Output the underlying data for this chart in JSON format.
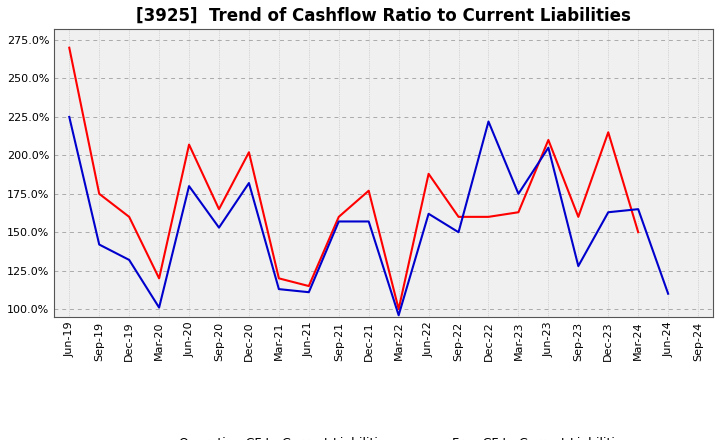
{
  "title": "[3925]  Trend of Cashflow Ratio to Current Liabilities",
  "x_labels": [
    "Jun-19",
    "Sep-19",
    "Dec-19",
    "Mar-20",
    "Jun-20",
    "Sep-20",
    "Dec-20",
    "Mar-21",
    "Jun-21",
    "Sep-21",
    "Dec-21",
    "Mar-22",
    "Jun-22",
    "Sep-22",
    "Dec-22",
    "Mar-23",
    "Jun-23",
    "Sep-23",
    "Dec-23",
    "Mar-24",
    "Jun-24",
    "Sep-24"
  ],
  "operating_cf": [
    270.0,
    175.0,
    160.0,
    120.0,
    207.0,
    165.0,
    202.0,
    120.0,
    115.0,
    160.0,
    177.0,
    100.0,
    188.0,
    160.0,
    160.0,
    163.0,
    210.0,
    160.0,
    215.0,
    150.0,
    null,
    null
  ],
  "free_cf": [
    225.0,
    142.0,
    132.0,
    101.0,
    180.0,
    153.0,
    182.0,
    113.0,
    111.0,
    157.0,
    157.0,
    96.0,
    162.0,
    150.0,
    222.0,
    175.0,
    205.0,
    128.0,
    163.0,
    165.0,
    110.0,
    null
  ],
  "operating_color": "#ff0000",
  "free_color": "#0000cd",
  "ylim_min": 95.0,
  "ylim_max": 282.0,
  "yticks": [
    100.0,
    125.0,
    150.0,
    175.0,
    200.0,
    225.0,
    250.0,
    275.0
  ],
  "legend_operating": "Operating CF to Current Liabilities",
  "legend_free": "Free CF to Current Liabilities",
  "bg_color": "#ffffff",
  "plot_bg_color": "#f0f0f0",
  "grid_color_h": "#aaaaaa",
  "grid_color_v": "#bbbbbb",
  "title_fontsize": 12,
  "label_fontsize": 8,
  "legend_fontsize": 9
}
